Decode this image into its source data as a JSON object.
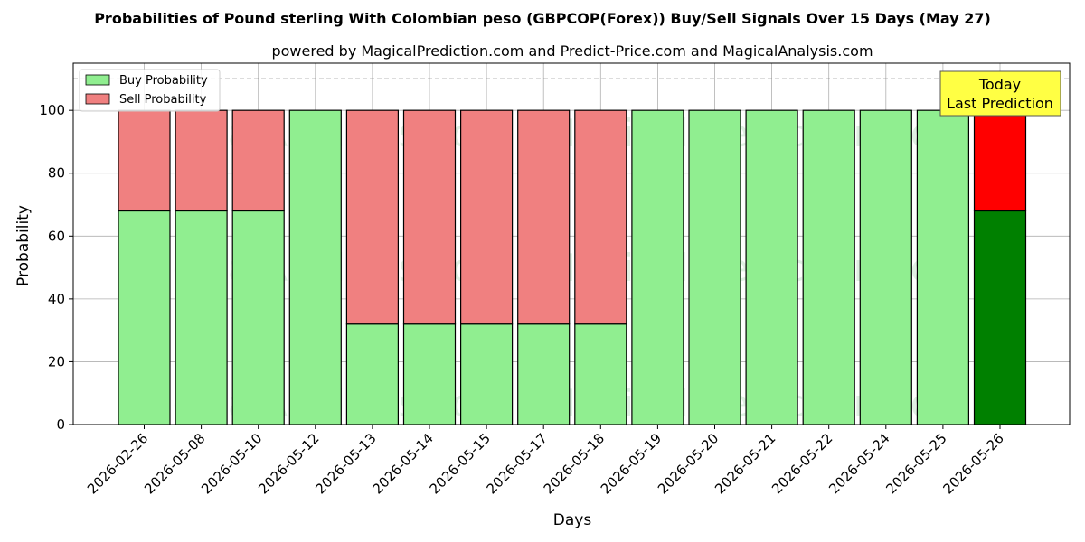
{
  "chart_data": {
    "type": "bar",
    "title": "Probabilities of Pound sterling With Colombian peso (GBPCOP(Forex)) Buy/Sell Signals Over 15 Days (May 27)",
    "subtitle": "powered by MagicalPrediction.com and Predict-Price.com and MagicalAnalysis.com",
    "xlabel": "Days",
    "ylabel": "Probability",
    "ylim": [
      0,
      115
    ],
    "yticks": [
      0,
      20,
      40,
      60,
      80,
      100
    ],
    "reference_line": 110,
    "grid": true,
    "legend_position": "top-left",
    "categories": [
      "2026-02-26",
      "2026-05-08",
      "2026-05-10",
      "2026-05-12",
      "2026-05-13",
      "2026-05-14",
      "2026-05-15",
      "2026-05-17",
      "2026-05-18",
      "2026-05-19",
      "2026-05-20",
      "2026-05-21",
      "2026-05-22",
      "2026-05-24",
      "2026-05-25",
      "2026-05-26"
    ],
    "series": [
      {
        "name": "Buy Probability",
        "color": "#90ee90",
        "highlight_color": "#008000",
        "values": [
          68,
          68,
          68,
          100,
          32,
          32,
          32,
          32,
          32,
          100,
          100,
          100,
          100,
          100,
          100,
          68
        ]
      },
      {
        "name": "Sell Probability",
        "color": "#f08080",
        "highlight_color": "#ff0000",
        "values": [
          32,
          32,
          32,
          0,
          68,
          68,
          68,
          68,
          68,
          0,
          0,
          0,
          0,
          0,
          0,
          32
        ]
      }
    ],
    "highlight_index": 15,
    "annotation": {
      "line1": "Today",
      "line2": "Last Prediction",
      "color": "#ffff44"
    },
    "watermarks": [
      "MagicalAnalysis.com",
      "MagicalPrediction.com"
    ]
  }
}
